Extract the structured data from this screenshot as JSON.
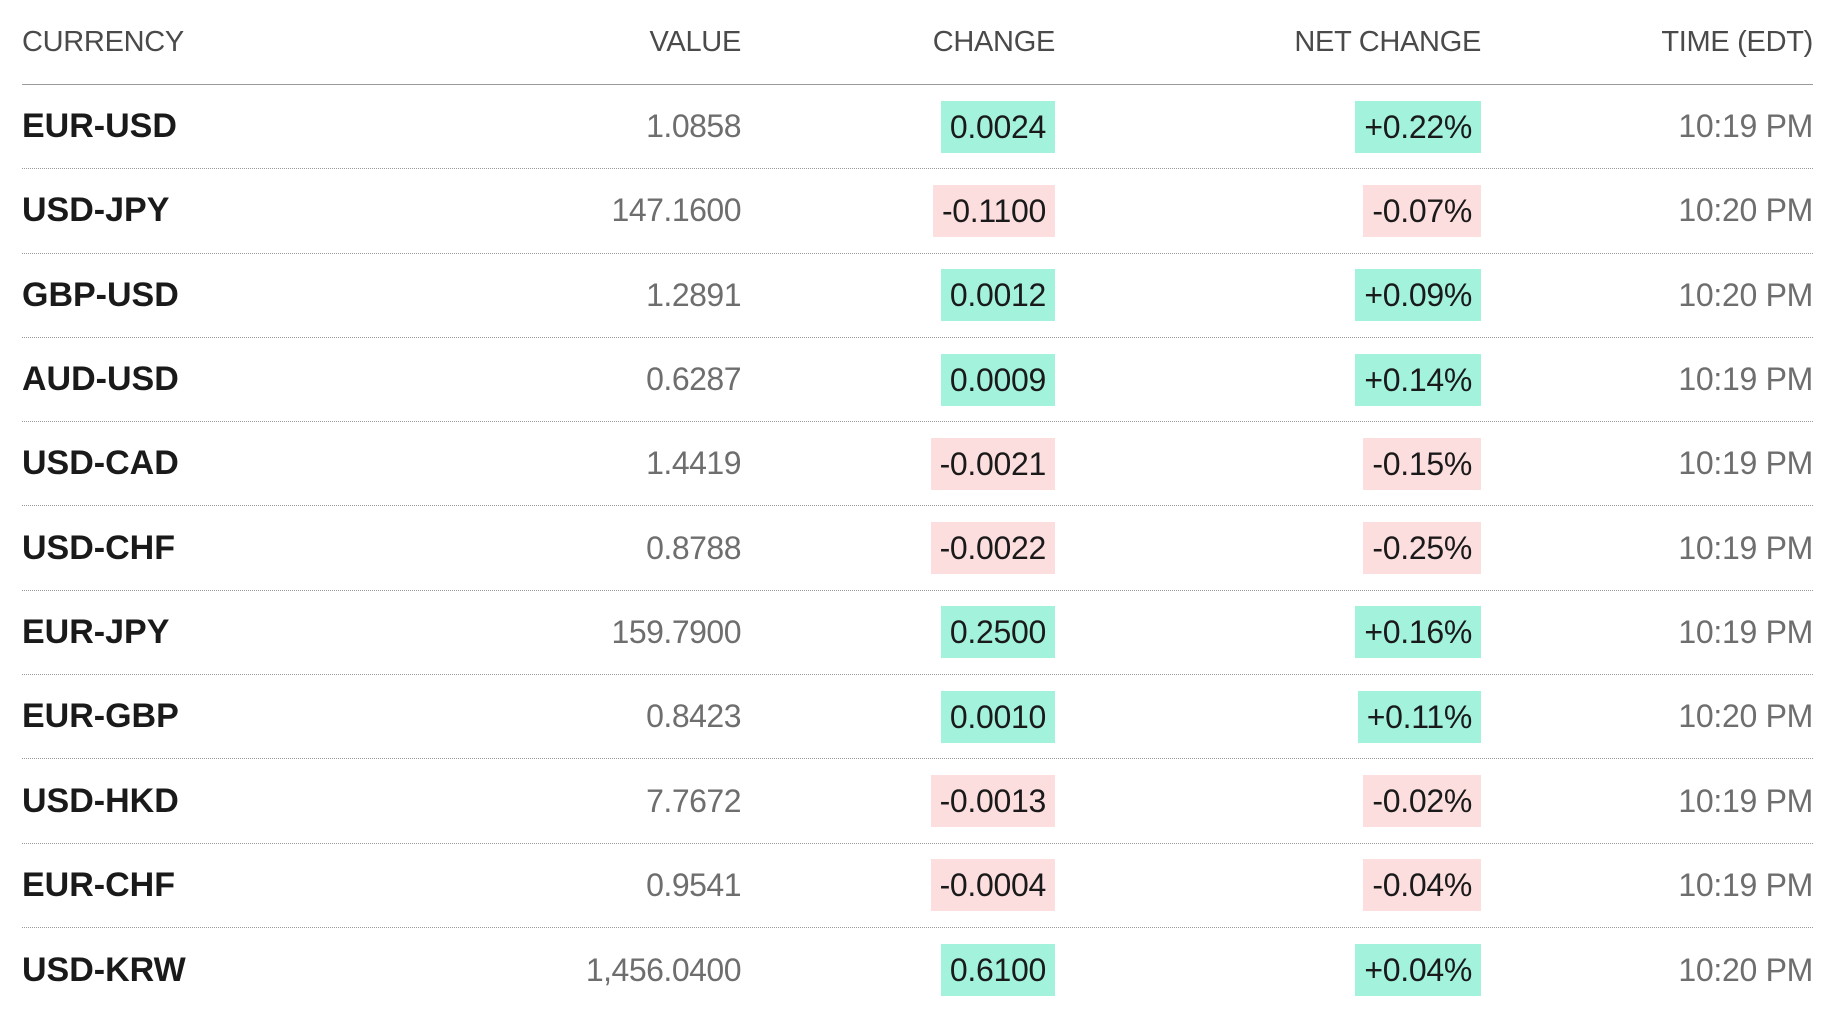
{
  "columns": {
    "currency": "CURRENCY",
    "value": "VALUE",
    "change": "CHANGE",
    "net_change": "NET CHANGE",
    "time": "TIME (EDT)"
  },
  "colors": {
    "positive_bg": "#a2f2dc",
    "negative_bg": "#fddedf"
  },
  "rows": [
    {
      "currency": "EUR-USD",
      "value": "1.0858",
      "change": "0.0024",
      "net_change": "+0.22%",
      "time": "10:19 PM",
      "direction": "up"
    },
    {
      "currency": "USD-JPY",
      "value": "147.1600",
      "change": "-0.1100",
      "net_change": "-0.07%",
      "time": "10:20 PM",
      "direction": "down"
    },
    {
      "currency": "GBP-USD",
      "value": "1.2891",
      "change": "0.0012",
      "net_change": "+0.09%",
      "time": "10:20 PM",
      "direction": "up"
    },
    {
      "currency": "AUD-USD",
      "value": "0.6287",
      "change": "0.0009",
      "net_change": "+0.14%",
      "time": "10:19 PM",
      "direction": "up"
    },
    {
      "currency": "USD-CAD",
      "value": "1.4419",
      "change": "-0.0021",
      "net_change": "-0.15%",
      "time": "10:19 PM",
      "direction": "down"
    },
    {
      "currency": "USD-CHF",
      "value": "0.8788",
      "change": "-0.0022",
      "net_change": "-0.25%",
      "time": "10:19 PM",
      "direction": "down"
    },
    {
      "currency": "EUR-JPY",
      "value": "159.7900",
      "change": "0.2500",
      "net_change": "+0.16%",
      "time": "10:19 PM",
      "direction": "up"
    },
    {
      "currency": "EUR-GBP",
      "value": "0.8423",
      "change": "0.0010",
      "net_change": "+0.11%",
      "time": "10:20 PM",
      "direction": "up"
    },
    {
      "currency": "USD-HKD",
      "value": "7.7672",
      "change": "-0.0013",
      "net_change": "-0.02%",
      "time": "10:19 PM",
      "direction": "down"
    },
    {
      "currency": "EUR-CHF",
      "value": "0.9541",
      "change": "-0.0004",
      "net_change": "-0.04%",
      "time": "10:19 PM",
      "direction": "down"
    },
    {
      "currency": "USD-KRW",
      "value": "1,456.0400",
      "change": "0.6100",
      "net_change": "+0.04%",
      "time": "10:20 PM",
      "direction": "up"
    }
  ]
}
